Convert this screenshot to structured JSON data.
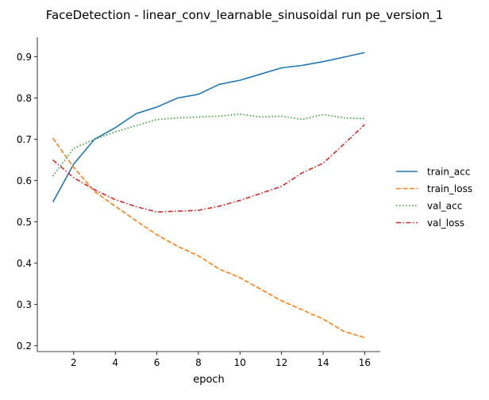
{
  "chart_data": {
    "type": "line",
    "title": "FaceDetection - linear_conv_learnable_sinusoidal run pe_version_1",
    "xlabel": "epoch",
    "ylabel": "",
    "xlim": [
      0.25,
      16.75
    ],
    "ylim": [
      0.186,
      0.947
    ],
    "x_ticks": [
      2,
      4,
      6,
      8,
      10,
      12,
      14,
      16
    ],
    "y_ticks": [
      0.2,
      0.3,
      0.4,
      0.5,
      0.6,
      0.7,
      0.8,
      0.9
    ],
    "grid": false,
    "legend_position": "right",
    "x": [
      1,
      2,
      3,
      4,
      5,
      6,
      7,
      8,
      9,
      10,
      11,
      12,
      13,
      14,
      15,
      16
    ],
    "series": [
      {
        "name": "train_acc",
        "color": "#1f77b4",
        "dash": "solid",
        "values": [
          0.548,
          0.64,
          0.7,
          0.728,
          0.762,
          0.778,
          0.8,
          0.809,
          0.833,
          0.843,
          0.858,
          0.873,
          0.879,
          0.888,
          0.899,
          0.91
        ]
      },
      {
        "name": "train_loss",
        "color": "#ff7f0e",
        "dash": "dashed",
        "values": [
          0.703,
          0.632,
          0.574,
          0.538,
          0.503,
          0.469,
          0.441,
          0.418,
          0.386,
          0.365,
          0.337,
          0.309,
          0.287,
          0.265,
          0.235,
          0.22
        ]
      },
      {
        "name": "val_acc",
        "color": "#2ca02c",
        "dash": "dotted",
        "values": [
          0.611,
          0.678,
          0.7,
          0.718,
          0.733,
          0.748,
          0.752,
          0.754,
          0.756,
          0.761,
          0.754,
          0.756,
          0.748,
          0.76,
          0.752,
          0.75
        ]
      },
      {
        "name": "val_loss",
        "color": "#d62728",
        "dash": "dashdot",
        "values": [
          0.65,
          0.607,
          0.578,
          0.554,
          0.537,
          0.524,
          0.526,
          0.528,
          0.538,
          0.552,
          0.569,
          0.586,
          0.619,
          0.642,
          0.688,
          0.736
        ]
      }
    ]
  }
}
